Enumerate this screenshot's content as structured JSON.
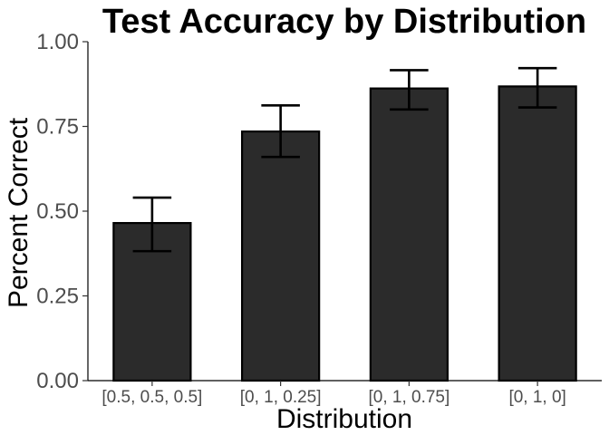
{
  "chart_data": {
    "type": "bar",
    "title": "Test Accuracy by Distribution",
    "xlabel": "Distribution",
    "ylabel": "Percent Correct",
    "categories": [
      "[0.5, 0.5, 0.5]",
      "[0, 1, 0.25]",
      "[0, 1, 0.75]",
      "[0, 1, 0]"
    ],
    "values": [
      0.465,
      0.735,
      0.862,
      0.868
    ],
    "error_low": [
      0.382,
      0.66,
      0.8,
      0.806
    ],
    "error_high": [
      0.54,
      0.812,
      0.916,
      0.922
    ],
    "ylim": [
      0,
      1
    ],
    "yticks": [
      0,
      0.25,
      0.5,
      0.75,
      1
    ],
    "ytick_labels": [
      "0.00",
      "0.25",
      "0.50",
      "0.75",
      "1.00"
    ],
    "grid": false,
    "legend": "none",
    "bar_color": "#2b2b2b",
    "bar_outline_color": "#000000"
  }
}
